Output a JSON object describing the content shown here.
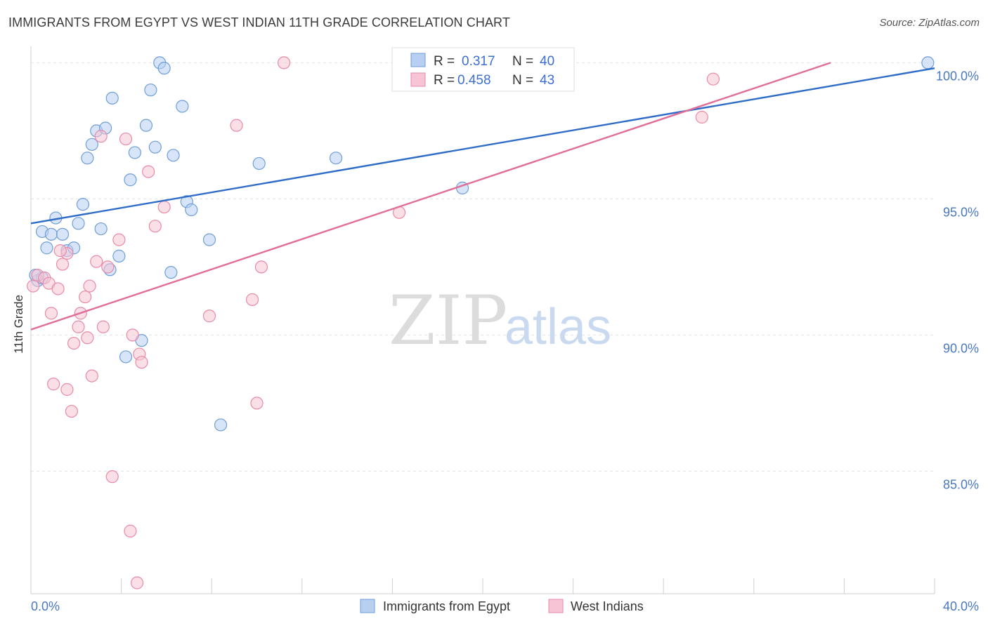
{
  "title": "IMMIGRANTS FROM EGYPT VS WEST INDIAN 11TH GRADE CORRELATION CHART",
  "source": "Source: ZipAtlas.com",
  "watermark": {
    "zip": "ZIP",
    "atlas": "atlas"
  },
  "legend": {
    "r_label": "R =",
    "n_label": "N =",
    "items": [
      {
        "r": "0.317",
        "n": "40"
      },
      {
        "r": "0.458",
        "n": "43"
      }
    ]
  },
  "colors": {
    "egypt_fill": "#b8cff2",
    "egypt_stroke": "#6f9ed9",
    "egypt_line": "#2f6cc8",
    "west_fill": "#f6c4d4",
    "west_stroke": "#e88aa8",
    "west_line": "#e06f98",
    "tick_label": "#4a78c2",
    "grid": "#e2e2e2"
  },
  "chart_data": {
    "type": "scatter",
    "xlabel": "",
    "ylabel": "11th Grade",
    "xlim": [
      0,
      40
    ],
    "ylim": [
      80.5,
      100.5
    ],
    "x_tick_labels": [
      "0.0%",
      "40.0%"
    ],
    "y_ticks": [
      85,
      90,
      95,
      100
    ],
    "y_tick_labels": [
      "85.0%",
      "90.0%",
      "95.0%",
      "100.0%"
    ],
    "grid": true,
    "legend_position": "top-center",
    "series": [
      {
        "name": "Immigrants from Egypt",
        "r": 0.317,
        "n": 40,
        "trend": {
          "x": [
            0,
            40
          ],
          "y": [
            94.1,
            99.8
          ]
        },
        "points": [
          [
            0.3,
            92.0
          ],
          [
            0.5,
            92.1
          ],
          [
            0.5,
            93.8
          ],
          [
            0.7,
            93.2
          ],
          [
            0.9,
            93.7
          ],
          [
            1.1,
            94.3
          ],
          [
            1.4,
            93.7
          ],
          [
            1.6,
            93.1
          ],
          [
            1.9,
            93.2
          ],
          [
            2.1,
            94.1
          ],
          [
            2.3,
            94.8
          ],
          [
            2.5,
            96.5
          ],
          [
            2.7,
            97.0
          ],
          [
            2.9,
            97.5
          ],
          [
            3.1,
            93.9
          ],
          [
            3.3,
            97.6
          ],
          [
            3.5,
            92.4
          ],
          [
            3.6,
            98.7
          ],
          [
            3.9,
            92.9
          ],
          [
            4.2,
            89.2
          ],
          [
            4.4,
            95.7
          ],
          [
            4.6,
            96.7
          ],
          [
            4.9,
            89.8
          ],
          [
            5.1,
            97.7
          ],
          [
            5.3,
            99.0
          ],
          [
            5.5,
            96.9
          ],
          [
            5.7,
            100.0
          ],
          [
            5.9,
            99.8
          ],
          [
            6.2,
            92.3
          ],
          [
            6.3,
            96.6
          ],
          [
            6.7,
            98.4
          ],
          [
            6.9,
            94.9
          ],
          [
            7.1,
            94.6
          ],
          [
            7.9,
            93.5
          ],
          [
            8.4,
            86.7
          ],
          [
            10.1,
            96.3
          ],
          [
            13.5,
            96.5
          ],
          [
            19.1,
            95.4
          ],
          [
            39.7,
            100.0
          ],
          [
            0.2,
            92.2
          ]
        ]
      },
      {
        "name": "West Indians",
        "r": 0.458,
        "n": 43,
        "trend": {
          "x": [
            0,
            35.4
          ],
          "y": [
            90.2,
            100.0
          ]
        },
        "points": [
          [
            0.1,
            91.8
          ],
          [
            0.3,
            92.2
          ],
          [
            0.6,
            92.1
          ],
          [
            0.8,
            91.9
          ],
          [
            0.9,
            90.8
          ],
          [
            1.0,
            88.2
          ],
          [
            1.2,
            91.7
          ],
          [
            1.4,
            92.6
          ],
          [
            1.6,
            93.0
          ],
          [
            1.6,
            88.0
          ],
          [
            1.8,
            87.2
          ],
          [
            1.9,
            89.7
          ],
          [
            2.1,
            90.3
          ],
          [
            2.2,
            90.8
          ],
          [
            2.4,
            91.4
          ],
          [
            2.5,
            89.9
          ],
          [
            2.6,
            91.8
          ],
          [
            2.7,
            88.5
          ],
          [
            2.9,
            92.7
          ],
          [
            3.1,
            97.3
          ],
          [
            3.2,
            90.3
          ],
          [
            3.4,
            92.5
          ],
          [
            3.6,
            84.8
          ],
          [
            3.9,
            93.5
          ],
          [
            4.2,
            97.2
          ],
          [
            4.4,
            82.8
          ],
          [
            4.5,
            90.0
          ],
          [
            4.7,
            80.9
          ],
          [
            4.8,
            89.3
          ],
          [
            4.9,
            89.0
          ],
          [
            5.2,
            96.0
          ],
          [
            5.5,
            94.0
          ],
          [
            5.9,
            94.7
          ],
          [
            7.9,
            90.7
          ],
          [
            9.1,
            97.7
          ],
          [
            9.8,
            91.3
          ],
          [
            10.0,
            87.5
          ],
          [
            10.2,
            92.5
          ],
          [
            11.2,
            100.0
          ],
          [
            16.3,
            94.5
          ],
          [
            29.7,
            98.0
          ],
          [
            30.2,
            99.4
          ],
          [
            1.3,
            93.1
          ]
        ]
      }
    ]
  }
}
